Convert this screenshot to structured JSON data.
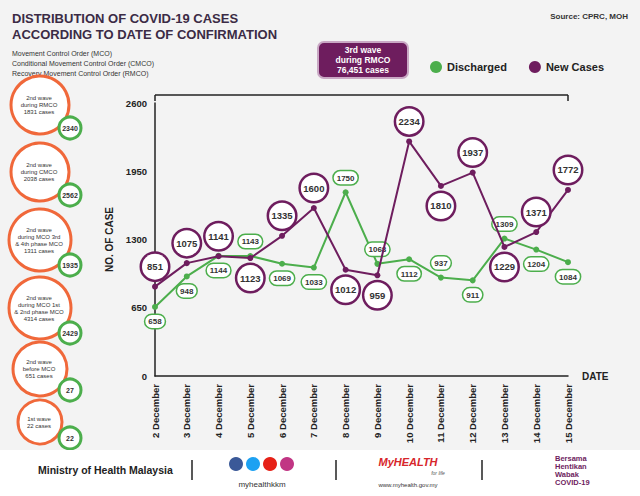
{
  "chart_data": {
    "type": "line",
    "title": "DISTRIBUTION OF COVID-19 CASES\nACCORDING TO DATE OF CONFIRMATION",
    "source": "Source: CPRC, MOH",
    "notes": [
      "Movement Control Order (MCO)",
      "Conditional Movement Control Order (CMCO)",
      "Recovery Movement Control Order (RMCO)"
    ],
    "annotation": "3rd wave\nduring RMCO\n76,451 cases",
    "x_label": "DATE",
    "y_label": "NO. OF CASE",
    "categories": [
      "2 December",
      "3 December",
      "4 December",
      "5 December",
      "6 December",
      "7 December",
      "8 December",
      "9 December",
      "10 December",
      "11 December",
      "12 December",
      "13 December",
      "14 December",
      "15 December"
    ],
    "series": [
      {
        "name": "Discharged",
        "color": "#4cae4c",
        "values": [
          658,
          948,
          1144,
          1143,
          1069,
          1033,
          1750,
          1068,
          1112,
          937,
          911,
          1309,
          1204,
          1084
        ]
      },
      {
        "name": "New Cases",
        "color": "#6e1d5e",
        "values": [
          851,
          1075,
          1141,
          1123,
          1335,
          1600,
          1012,
          959,
          2234,
          1810,
          1937,
          1229,
          1371,
          1772
        ]
      }
    ],
    "ylim": [
      0,
      2600
    ],
    "yticks": [
      0,
      650,
      1300,
      1950,
      2600
    ],
    "grid": false,
    "legend": "top",
    "data_labels": true,
    "waves": [
      {
        "label": "2nd wave\nduring RMCO\n1831 cases",
        "discharged": 2340
      },
      {
        "label": "2nd wave\nduring CMCO\n2038 cases",
        "discharged": 2562
      },
      {
        "label": "2nd wave\nduring MCO 3rd\n& 4th phase MCO\n1311 cases",
        "discharged": 1935
      },
      {
        "label": "2nd wave\nduring MCO 1st\n& 2nd phase MCO\n4314 cases",
        "discharged": 2429
      },
      {
        "label": "2nd wave\nbefore MCO\n651 cases",
        "discharged": 27
      },
      {
        "label": "1st wave\n22 cases",
        "discharged": 22
      }
    ],
    "footer": {
      "ministry": "Ministry of Health Malaysia",
      "social": "myhealthkkm",
      "brand": "MyHEALTH",
      "tagline": "for life",
      "website": "www.myhealth.gov.my",
      "campaign": "Bersama\nHentikan\nWabak\nCOVID-19"
    }
  }
}
